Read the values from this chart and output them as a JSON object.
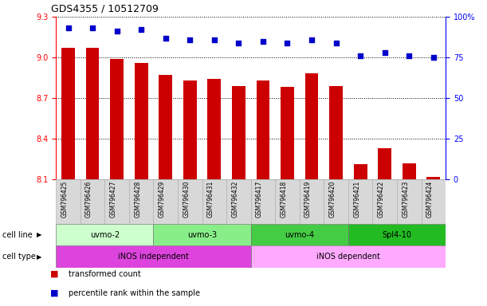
{
  "title": "GDS4355 / 10512709",
  "samples": [
    "GSM796425",
    "GSM796426",
    "GSM796427",
    "GSM796428",
    "GSM796429",
    "GSM796430",
    "GSM796431",
    "GSM796432",
    "GSM796417",
    "GSM796418",
    "GSM796419",
    "GSM796420",
    "GSM796421",
    "GSM796422",
    "GSM796423",
    "GSM796424"
  ],
  "bar_values": [
    9.07,
    9.07,
    8.99,
    8.96,
    8.87,
    8.83,
    8.84,
    8.79,
    8.83,
    8.78,
    8.88,
    8.79,
    8.21,
    8.33,
    8.22,
    8.12
  ],
  "dot_values": [
    93,
    93,
    91,
    92,
    87,
    86,
    86,
    84,
    85,
    84,
    86,
    84,
    76,
    78,
    76,
    75
  ],
  "ylim": [
    8.1,
    9.3
  ],
  "yticks_left": [
    8.1,
    8.4,
    8.7,
    9.0,
    9.3
  ],
  "yticks_right": [
    0,
    25,
    50,
    75,
    100
  ],
  "bar_color": "#cc0000",
  "dot_color": "#0000cc",
  "cell_lines": [
    {
      "label": "uvmo-2",
      "start": 0,
      "end": 4,
      "color": "#ccffcc"
    },
    {
      "label": "uvmo-3",
      "start": 4,
      "end": 8,
      "color": "#88ee88"
    },
    {
      "label": "uvmo-4",
      "start": 8,
      "end": 12,
      "color": "#44cc44"
    },
    {
      "label": "Spl4-10",
      "start": 12,
      "end": 16,
      "color": "#22bb22"
    }
  ],
  "cell_types": [
    {
      "label": "iNOS independent",
      "start": 0,
      "end": 8,
      "color": "#dd44dd"
    },
    {
      "label": "iNOS dependent",
      "start": 8,
      "end": 16,
      "color": "#ffaaff"
    }
  ],
  "legend_items": [
    {
      "label": "transformed count",
      "color": "#cc0000"
    },
    {
      "label": "percentile rank within the sample",
      "color": "#0000cc"
    }
  ]
}
